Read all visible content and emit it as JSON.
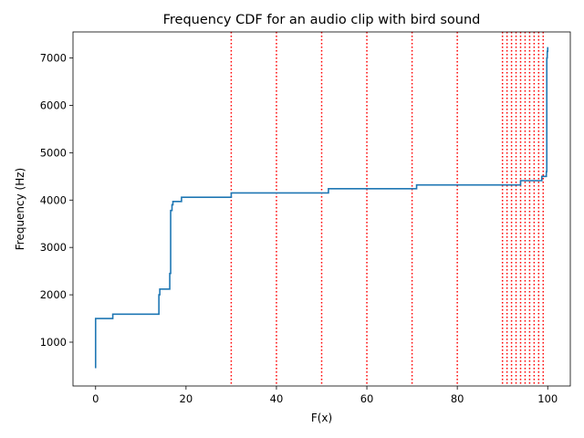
{
  "chart_data": {
    "type": "line",
    "title": "Frequency CDF for an audio clip with bird sound",
    "xlabel": "F(x)",
    "ylabel": "Frequency (Hz)",
    "xlim": [
      -5,
      105
    ],
    "ylim": [
      75,
      7550
    ],
    "grid": false,
    "xticks": [
      0,
      20,
      40,
      60,
      80,
      100
    ],
    "xtick_labels": [
      "0",
      "20",
      "40",
      "60",
      "80",
      "100"
    ],
    "yticks": [
      1000,
      2000,
      3000,
      4000,
      5000,
      6000,
      7000
    ],
    "ytick_labels": [
      "1000",
      "2000",
      "3000",
      "4000",
      "5000",
      "6000",
      "7000"
    ],
    "series": [
      {
        "color": "#1f77b4",
        "points": [
          [
            0,
            450
          ],
          [
            0,
            1500
          ],
          [
            3.8,
            1500
          ],
          [
            3.8,
            1590
          ],
          [
            14,
            1590
          ],
          [
            14,
            2000
          ],
          [
            14.2,
            2000
          ],
          [
            14.2,
            2120
          ],
          [
            16.4,
            2120
          ],
          [
            16.4,
            2450
          ],
          [
            16.6,
            2450
          ],
          [
            16.6,
            3780
          ],
          [
            16.9,
            3780
          ],
          [
            16.9,
            3900
          ],
          [
            17.1,
            3900
          ],
          [
            17.1,
            3970
          ],
          [
            19,
            3970
          ],
          [
            19,
            4060
          ],
          [
            30,
            4060
          ],
          [
            30,
            4150
          ],
          [
            51.5,
            4150
          ],
          [
            51.5,
            4240
          ],
          [
            71,
            4240
          ],
          [
            71,
            4320
          ],
          [
            94,
            4320
          ],
          [
            94,
            4410
          ],
          [
            98.7,
            4410
          ],
          [
            98.7,
            4500
          ],
          [
            99.7,
            4500
          ],
          [
            99.7,
            4600
          ],
          [
            99.8,
            4600
          ],
          [
            99.8,
            7000
          ],
          [
            99.9,
            7000
          ],
          [
            99.9,
            7140
          ],
          [
            100,
            7140
          ],
          [
            100,
            7230
          ]
        ]
      }
    ],
    "vlines": {
      "color": "#ff0000",
      "style": "dotted",
      "x": [
        30,
        40,
        50,
        60,
        70,
        80,
        90,
        91,
        92,
        93,
        94,
        95,
        96,
        97,
        98,
        99
      ]
    }
  }
}
